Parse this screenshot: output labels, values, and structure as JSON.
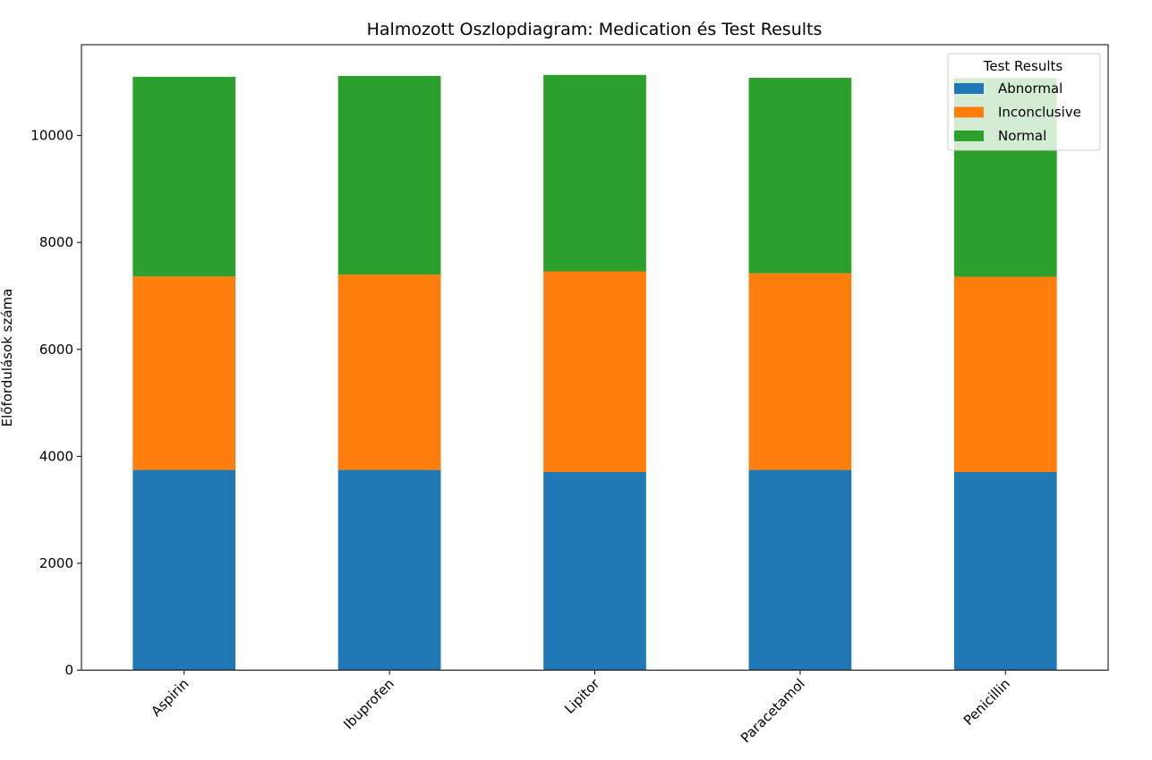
{
  "chart_data": {
    "type": "bar",
    "stacked": true,
    "title": "Halmozott Oszlopdiagram: Medication és Test Results",
    "xlabel": "",
    "ylabel": "Előfordulások száma",
    "categories": [
      "Aspirin",
      "Ibuprofen",
      "Lipitor",
      "Paracetamol",
      "Penicillin"
    ],
    "series": [
      {
        "name": "Abnormal",
        "color": "#1f77b4",
        "values": [
          3745,
          3745,
          3705,
          3745,
          3705
        ]
      },
      {
        "name": "Inconclusive",
        "color": "#ff7f0e",
        "values": [
          3620,
          3655,
          3755,
          3680,
          3655
        ]
      },
      {
        "name": "Normal",
        "color": "#2ca02c",
        "values": [
          3735,
          3715,
          3675,
          3655,
          3715
        ]
      }
    ],
    "ylim": [
      0,
      11700
    ],
    "yticks": [
      0,
      2000,
      4000,
      6000,
      8000,
      10000
    ],
    "legend": {
      "title": "Test Results",
      "placement": "top-right"
    },
    "grid": false
  }
}
